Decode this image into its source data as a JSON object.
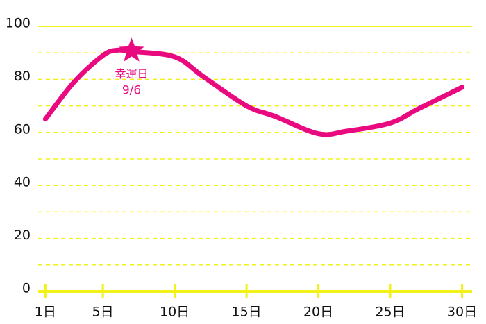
{
  "chart_data": {
    "type": "line",
    "x": [
      1,
      3,
      5,
      6,
      7,
      10,
      12,
      15,
      17,
      20,
      22,
      25,
      27,
      30
    ],
    "series": [
      {
        "color": "#ea0a80",
        "values": [
          65,
          79,
          89,
          91,
          90.5,
          88.5,
          81,
          70,
          66,
          59.5,
          60.5,
          63.5,
          69,
          77
        ]
      }
    ],
    "xlim": [
      0.5,
      30.7
    ],
    "xticks": [
      {
        "value": 1,
        "label": "1日"
      },
      {
        "value": 5,
        "label": "5日"
      },
      {
        "value": 10,
        "label": "10日"
      },
      {
        "value": 15,
        "label": "15日"
      },
      {
        "value": 20,
        "label": "20日"
      },
      {
        "value": 25,
        "label": "25日"
      },
      {
        "value": 30,
        "label": "30日"
      }
    ],
    "ylim": [
      0,
      100
    ],
    "yticks": [
      0,
      20,
      40,
      60,
      80,
      100
    ],
    "minor_yticks": [
      10,
      30,
      50,
      70,
      90
    ],
    "grid": true,
    "grid_color": "#f2f21a",
    "annotation": {
      "text": "幸運日",
      "date": "9/6",
      "x": 7,
      "y": 91
    }
  }
}
